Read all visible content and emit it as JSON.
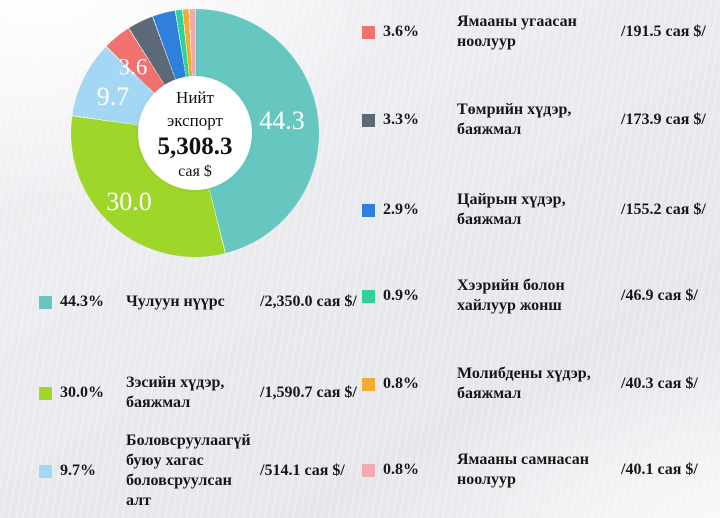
{
  "chart_data": {
    "type": "pie",
    "title": "",
    "center_label": {
      "line1": "Нийт",
      "line2": "экспорт",
      "total": "5,308.3",
      "unit": "сая $"
    },
    "legend_position": "left-and-right-columns",
    "slices": [
      {
        "name": "Чулуун нүүрс",
        "percent": 44.3,
        "percent_label": "44.3%",
        "value_label": "/2,350.0 сая $/",
        "color": "#66c7c1",
        "pie_label": "44.3",
        "column": "left"
      },
      {
        "name": "Зэсийн хүдэр,\nбаяжмал",
        "percent": 30.0,
        "percent_label": "30.0%",
        "value_label": "/1,590.7 сая $/",
        "color": "#9ed629",
        "pie_label": "30.0",
        "column": "left"
      },
      {
        "name": "Боловсруулаагүй\nбуюу хагас\nболовсруулсан алт",
        "percent": 9.7,
        "percent_label": "9.7%",
        "value_label": "/514.1 сая $/",
        "color": "#a3d7f3",
        "pie_label": "9.7",
        "column": "left"
      },
      {
        "name": "Ямааны угаасан\nноолуур",
        "percent": 3.6,
        "percent_label": "3.6%",
        "value_label": "/191.5 сая $/",
        "color": "#f1716e",
        "pie_label": "3.6",
        "column": "right"
      },
      {
        "name": "Төмрийн хүдэр,\nбаяжмал",
        "percent": 3.3,
        "percent_label": "3.3%",
        "value_label": "/173.9 сая $/",
        "color": "#5b6a76",
        "pie_label": "",
        "column": "right"
      },
      {
        "name": "Цайрын хүдэр,\nбаяжмал",
        "percent": 2.9,
        "percent_label": "2.9%",
        "value_label": "/155.2 сая $/",
        "color": "#2f80dd",
        "pie_label": "",
        "column": "right"
      },
      {
        "name": "Хээрийн болон\nхайлуур жонш",
        "percent": 0.9,
        "percent_label": "0.9%",
        "value_label": "/46.9 сая $/",
        "color": "#2fd298",
        "pie_label": "",
        "column": "right"
      },
      {
        "name": "Молибдены хүдэр,\nбаяжмал",
        "percent": 0.8,
        "percent_label": "0.8%",
        "value_label": "/40.3 сая $/",
        "color": "#f3ab33",
        "pie_label": "",
        "column": "right"
      },
      {
        "name": "Ямааны самнасан\nноолуур",
        "percent": 0.8,
        "percent_label": "0.8%",
        "value_label": "/40.1 сая $/",
        "color": "#f2a9b0",
        "pie_label": "",
        "column": "right"
      }
    ]
  }
}
